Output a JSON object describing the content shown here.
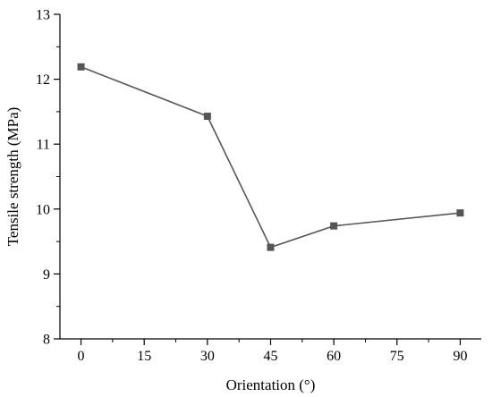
{
  "chart_data": {
    "type": "line",
    "xlabel": "Orientation (°)",
    "ylabel": "Tensile strength (MPa)",
    "xlim": [
      -5,
      95
    ],
    "ylim": [
      8,
      13
    ],
    "x_ticks": [
      0,
      15,
      30,
      45,
      60,
      75,
      90
    ],
    "y_ticks": [
      8,
      9,
      10,
      11,
      12,
      13
    ],
    "grid": false,
    "legend": "none",
    "marker": "square",
    "series": [
      {
        "x": [
          0,
          30,
          45,
          60,
          90
        ],
        "values": [
          12.19,
          11.43,
          9.41,
          9.74,
          9.94
        ],
        "color": "#555555"
      }
    ]
  }
}
